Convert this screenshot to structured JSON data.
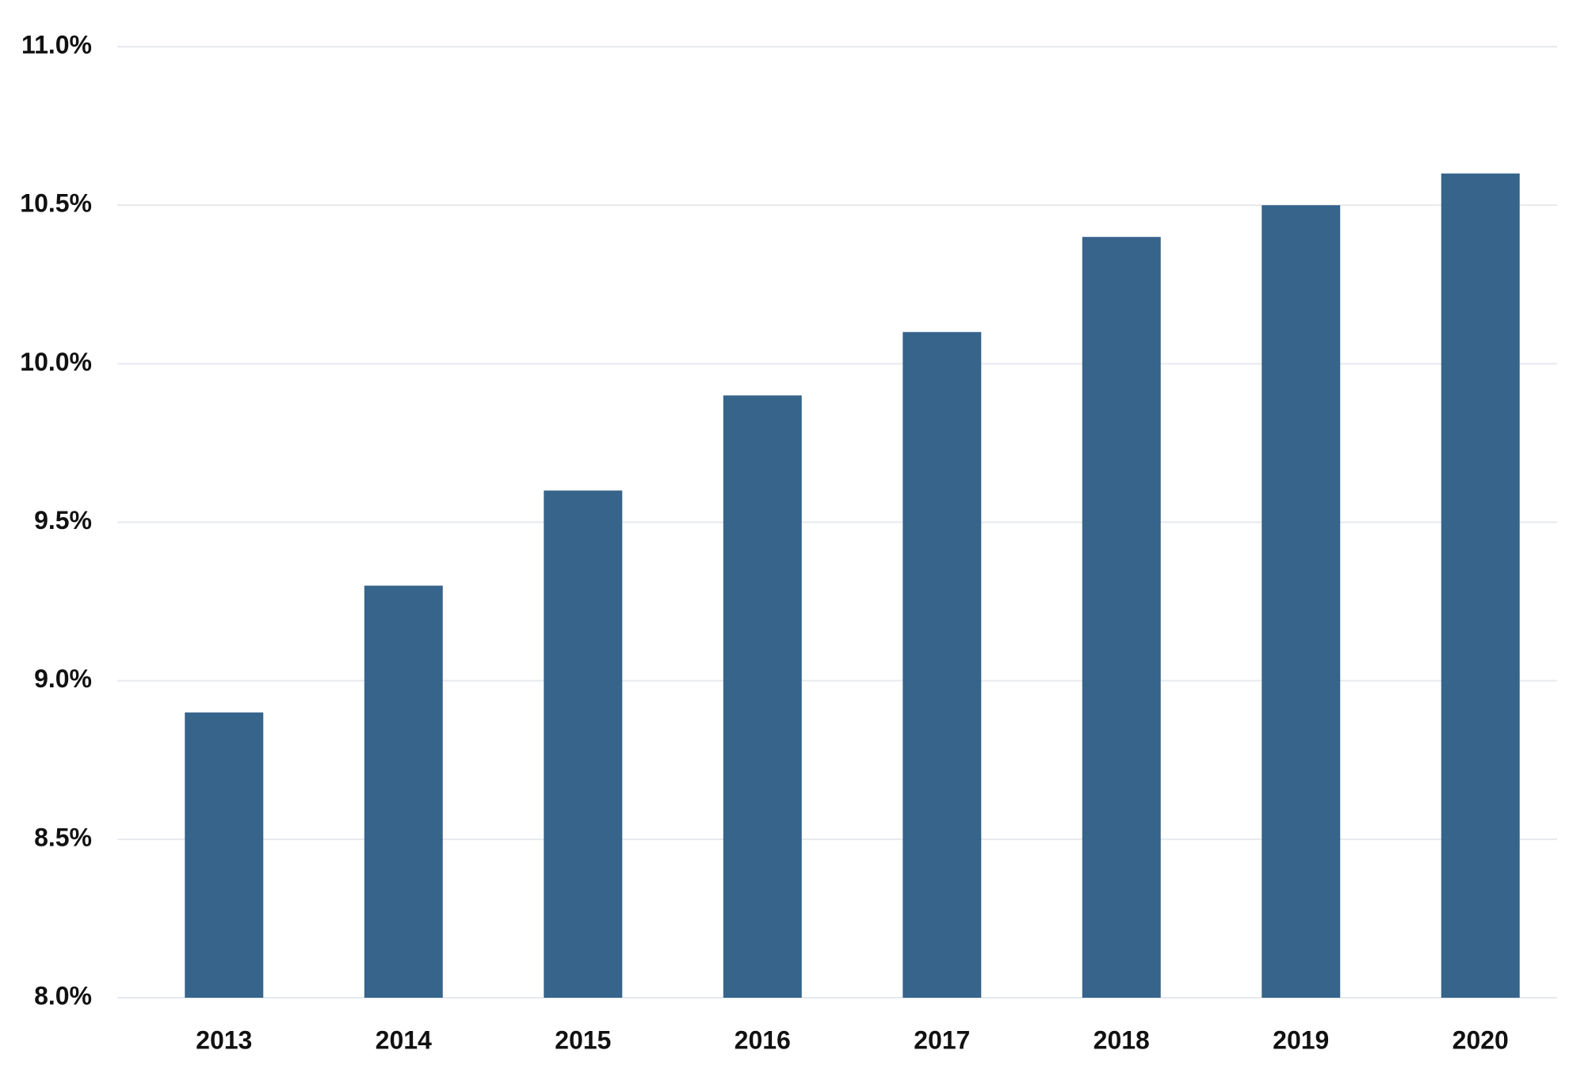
{
  "chart_data": {
    "type": "bar",
    "title": "",
    "xlabel": "",
    "ylabel": "",
    "categories": [
      "2013",
      "2014",
      "2015",
      "2016",
      "2017",
      "2018",
      "2019",
      "2020"
    ],
    "values": [
      8.9,
      9.3,
      9.6,
      9.9,
      10.1,
      10.4,
      10.5,
      10.6
    ],
    "ylim": [
      8.0,
      11.0
    ],
    "yticks": [
      8.0,
      8.5,
      9.0,
      9.5,
      10.0,
      10.5,
      11.0
    ],
    "ytick_labels": [
      "8.0%",
      "8.5%",
      "9.0%",
      "9.5%",
      "10.0%",
      "10.5%",
      "11.0%"
    ],
    "value_unit": "%",
    "grid": "horizontal",
    "legend": "none",
    "colors": {
      "bar": "#36648b",
      "grid": "#e6e9ee",
      "text": "#111111"
    }
  }
}
